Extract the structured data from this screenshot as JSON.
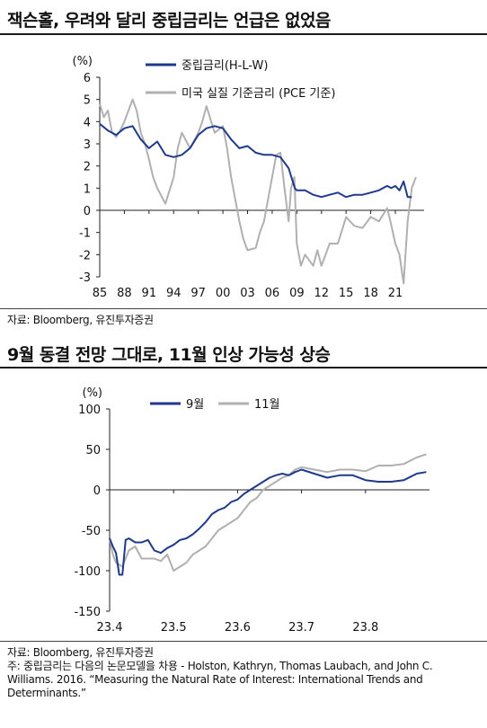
{
  "titles": {
    "top": "잭슨홀, 우려와 달리 중립금리는 언급은 없었음",
    "bottom": "9월 동결 전망 그대로, 11월 인상 가능성 상승"
  },
  "source_top": "자료: Bloomberg, 유진투자증권",
  "source_bottom": "자료: Bloomberg, 유진투자증권",
  "note": "주: 중립금리는 다음의 논문모델을 차용 - Holston, Kathryn, Thomas Laubach, and John C. Williams. 2016. “Measuring the Natural Rate of Interest: International Trends and Determinants.”",
  "colors": {
    "navy": "#1f3a8a",
    "gray": "#b0b0b0"
  },
  "chart_data": [
    {
      "type": "line",
      "unit_label": "(%)",
      "ylim": [
        -3,
        6
      ],
      "yticks": [
        6,
        5,
        4,
        3,
        2,
        1,
        0,
        -1,
        -2,
        -3
      ],
      "xlim": [
        1985,
        2024.5
      ],
      "xticks": [
        1985,
        1988,
        1991,
        1994,
        1997,
        2000,
        2003,
        2006,
        2009,
        2012,
        2015,
        2018,
        2021
      ],
      "xtick_labels": [
        "85",
        "88",
        "91",
        "94",
        "97",
        "00",
        "03",
        "06",
        "09",
        "12",
        "15",
        "18",
        "21"
      ],
      "legend_position": "top",
      "series": [
        {
          "name": "중립금리(H-L-W)",
          "color": "#1f3a8a",
          "x": [
            1985,
            1986,
            1987,
            1988,
            1989,
            1990,
            1991,
            1992,
            1993,
            1994,
            1995,
            1996,
            1997,
            1998,
            1999,
            2000,
            2001,
            2002,
            2003,
            2004,
            2005,
            2006,
            2007,
            2008,
            2008.75,
            2009,
            2010,
            2011,
            2012,
            2013,
            2014,
            2015,
            2016,
            2017,
            2018,
            2019,
            2019.5,
            2020,
            2020.5,
            2021,
            2021.5,
            2022,
            2022.5,
            2023
          ],
          "y": [
            3.9,
            3.6,
            3.4,
            3.7,
            3.8,
            3.2,
            2.8,
            3.1,
            2.5,
            2.4,
            2.5,
            2.8,
            3.4,
            3.7,
            3.8,
            3.7,
            3.2,
            2.8,
            2.9,
            2.6,
            2.5,
            2.5,
            2.4,
            1.9,
            1.0,
            0.9,
            0.9,
            0.7,
            0.6,
            0.7,
            0.8,
            0.6,
            0.7,
            0.7,
            0.8,
            0.9,
            1.0,
            1.1,
            1.0,
            1.1,
            0.9,
            1.3,
            0.6,
            0.6
          ]
        },
        {
          "name": "미국 실질 기준금리 (PCE 기준)",
          "color": "#b0b0b0",
          "x": [
            1985,
            1985.5,
            1986,
            1986.5,
            1987,
            1987.5,
            1988,
            1989,
            1989.5,
            1990,
            1990.5,
            1991,
            1991.5,
            1992,
            1993,
            1994,
            1994.5,
            1995,
            1996,
            1997,
            1997.5,
            1998,
            1999,
            2000,
            2000.5,
            2001,
            2001.5,
            2002,
            2002.5,
            2003,
            2004,
            2004.5,
            2005,
            2006,
            2006.5,
            2007,
            2007.5,
            2008,
            2008.3,
            2008.7,
            2009,
            2009.5,
            2010,
            2011,
            2011.5,
            2012,
            2013,
            2014,
            2015,
            2016,
            2017,
            2018,
            2019,
            2020,
            2020.4,
            2021,
            2021.5,
            2022,
            2022.5,
            2023,
            2023.5
          ],
          "y": [
            4.8,
            4.2,
            4.5,
            3.5,
            3.3,
            3.6,
            4.0,
            5.0,
            4.5,
            3.5,
            3.0,
            2.3,
            1.5,
            1.0,
            0.3,
            1.5,
            2.8,
            3.5,
            2.8,
            3.5,
            4.0,
            4.7,
            3.5,
            3.8,
            2.8,
            1.5,
            0.5,
            -0.5,
            -1.3,
            -1.8,
            -1.7,
            -1.0,
            -0.5,
            1.5,
            2.5,
            2.6,
            1.0,
            -0.5,
            1.0,
            1.5,
            -1.5,
            -2.5,
            -2.0,
            -2.5,
            -1.8,
            -2.5,
            -1.5,
            -1.5,
            -0.3,
            -0.7,
            -0.8,
            -0.3,
            -0.5,
            0.1,
            -0.5,
            -1.5,
            -2.0,
            -3.3,
            -0.5,
            1.0,
            1.5
          ]
        }
      ]
    },
    {
      "type": "line",
      "unit_label": "(%)",
      "ylim": [
        -150,
        100
      ],
      "yticks": [
        100,
        50,
        0,
        -50,
        -100,
        -150
      ],
      "xlim": [
        23.4,
        23.9
      ],
      "xticks": [
        23.4,
        23.5,
        23.6,
        23.7,
        23.8
      ],
      "xtick_labels": [
        "23.4",
        "23.5",
        "23.6",
        "23.7",
        "23.8"
      ],
      "legend_position": "top",
      "series": [
        {
          "name": "9월",
          "color": "#1f3a8a",
          "x": [
            23.4,
            23.405,
            23.41,
            23.415,
            23.42,
            23.425,
            23.43,
            23.44,
            23.45,
            23.46,
            23.47,
            23.48,
            23.49,
            23.5,
            23.51,
            23.52,
            23.53,
            23.54,
            23.55,
            23.56,
            23.57,
            23.58,
            23.59,
            23.6,
            23.61,
            23.62,
            23.63,
            23.64,
            23.65,
            23.66,
            23.67,
            23.68,
            23.69,
            23.7,
            23.72,
            23.74,
            23.76,
            23.78,
            23.8,
            23.82,
            23.84,
            23.86,
            23.88,
            23.895
          ],
          "y": [
            -60,
            -70,
            -78,
            -105,
            -105,
            -62,
            -60,
            -65,
            -65,
            -62,
            -75,
            -78,
            -72,
            -68,
            -62,
            -60,
            -55,
            -48,
            -40,
            -30,
            -25,
            -22,
            -15,
            -12,
            -5,
            0,
            5,
            10,
            15,
            18,
            20,
            18,
            22,
            25,
            20,
            15,
            18,
            18,
            12,
            10,
            10,
            12,
            20,
            22
          ]
        },
        {
          "name": "11월",
          "color": "#b0b0b0",
          "x": [
            23.4,
            23.405,
            23.41,
            23.42,
            23.43,
            23.44,
            23.45,
            23.46,
            23.47,
            23.48,
            23.49,
            23.5,
            23.51,
            23.52,
            23.53,
            23.54,
            23.55,
            23.56,
            23.57,
            23.58,
            23.59,
            23.6,
            23.61,
            23.62,
            23.63,
            23.64,
            23.65,
            23.66,
            23.67,
            23.68,
            23.69,
            23.7,
            23.72,
            23.74,
            23.76,
            23.78,
            23.8,
            23.82,
            23.84,
            23.86,
            23.88,
            23.895
          ],
          "y": [
            -60,
            -80,
            -90,
            -95,
            -75,
            -70,
            -85,
            -85,
            -85,
            -88,
            -80,
            -100,
            -95,
            -90,
            -80,
            -75,
            -70,
            -60,
            -50,
            -45,
            -40,
            -35,
            -25,
            -15,
            -10,
            0,
            5,
            10,
            15,
            18,
            25,
            28,
            25,
            22,
            25,
            25,
            23,
            30,
            30,
            32,
            40,
            44
          ]
        }
      ]
    }
  ]
}
